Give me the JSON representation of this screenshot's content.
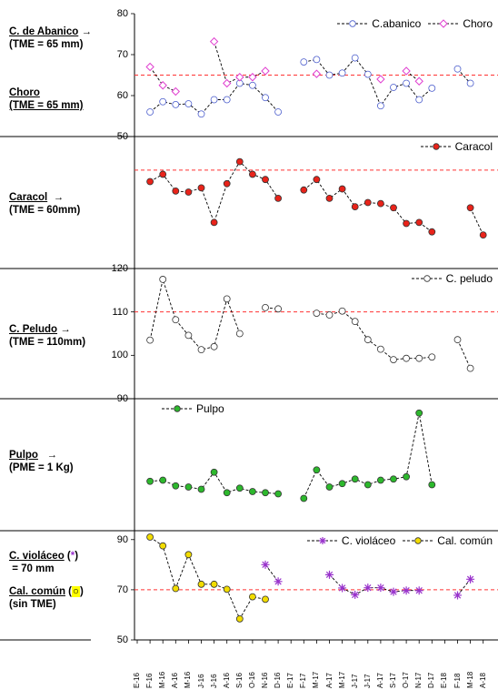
{
  "labels": {
    "p1": {
      "name": "C. de Abanico",
      "arrow": "→",
      "tme": "(TME = 65 mm)",
      "name2": "Choro",
      "tme2": "(TME = 65 mm)"
    },
    "p2": {
      "name": "Caracol",
      "arrow": "→",
      "tme": "(TME = 60mm)"
    },
    "p3": {
      "name": "C. Peludo",
      "arrow": "→",
      "tme": "(TME = 110mm)"
    },
    "p4": {
      "name": "Pulpo",
      "arrow": "→",
      "tme": "(PME = 1 Kg)"
    },
    "p5": {
      "name": "C. violáceo",
      "star": "*",
      "val": "= 70 mm",
      "name2": "Cal. común",
      "circle": "○",
      "note": "(sin TME)"
    }
  },
  "colors": {
    "abanico": "#4a5ccc",
    "choro": "#e040d0",
    "caracol": "#e8231a",
    "peludo": "#000000",
    "pulpo": "#2db82d",
    "violaceo": "#9933cc",
    "calcomun": "#f2dc00",
    "ref": "#ff3333"
  },
  "chart_data": {
    "type": "line",
    "x": [
      "E-16",
      "F-16",
      "M-16",
      "A-16",
      "M-16",
      "J-16",
      "J-16",
      "A-16",
      "S-16",
      "O-16",
      "N-16",
      "D-16",
      "E-17",
      "F-17",
      "M-17",
      "A-17",
      "M-17",
      "J-17",
      "J-17",
      "A-17",
      "S-17",
      "O-17",
      "N-17",
      "D-17",
      "E-18",
      "F-18",
      "M-18",
      "A-18"
    ],
    "x_tick_labels": [
      "E-16",
      "F-16",
      "M-16",
      "A-16",
      "M-16",
      "J-16",
      "J-16",
      "A-16",
      "S-16",
      "O-16",
      "N-16",
      "D-16",
      "E-17",
      "F-17",
      "M-17",
      "A-17",
      "M-17",
      "J-17",
      "J-17",
      "A-17",
      "S-17",
      "O-17",
      "N-17",
      "D-17",
      "E-18",
      "F-18",
      "M-18",
      "A-18"
    ],
    "panels": [
      {
        "id": "abanico-choro",
        "ylim": [
          50,
          80
        ],
        "yticks": [
          50,
          60,
          70,
          80
        ],
        "ref_line": 65,
        "legend_position": "top-right",
        "series": [
          {
            "name": "C.abanico",
            "marker": "circle",
            "color_key": "abanico",
            "values": [
              null,
              56,
              58.5,
              57.8,
              58,
              55.5,
              59,
              59,
              63,
              62.5,
              59.5,
              56,
              null,
              68.2,
              68.8,
              65,
              65.5,
              69.2,
              65.2,
              57.5,
              62,
              63,
              59,
              61.8,
              null,
              66.5,
              63,
              null
            ]
          },
          {
            "name": "Choro",
            "marker": "diamond",
            "color_key": "choro",
            "values": [
              null,
              67,
              62.5,
              61,
              null,
              null,
              73.2,
              63,
              64.5,
              64.5,
              66,
              null,
              null,
              null,
              65.3,
              null,
              null,
              null,
              null,
              64,
              null,
              66,
              63.5,
              null,
              null,
              null,
              null,
              null
            ]
          }
        ]
      },
      {
        "id": "caracol",
        "ylim": [
          0,
          10
        ],
        "yticks": [],
        "ref_line": 8.1,
        "legend_position": "top-right",
        "series": [
          {
            "name": "Caracol",
            "marker": "circle",
            "color_key": "caracol",
            "values": [
              null,
              7.0,
              7.7,
              6.1,
              6.0,
              6.4,
              3.1,
              6.8,
              8.9,
              7.7,
              7.2,
              5.4,
              null,
              6.2,
              7.2,
              5.4,
              6.3,
              4.6,
              5.0,
              4.9,
              4.5,
              3.0,
              3.1,
              2.2,
              null,
              null,
              4.5,
              1.9
            ]
          }
        ]
      },
      {
        "id": "peludo",
        "ylim": [
          90,
          120
        ],
        "yticks": [
          90,
          100,
          110,
          120
        ],
        "ref_line": 110,
        "legend_position": "top-right",
        "series": [
          {
            "name": "C. peludo",
            "marker": "circle",
            "color_key": "peludo",
            "values": [
              null,
              103.5,
              117.5,
              108.2,
              104.6,
              101.3,
              102,
              113,
              105,
              null,
              111,
              110.7,
              null,
              null,
              109.7,
              109.3,
              110.2,
              107.8,
              103.6,
              101.4,
              99,
              99.3,
              99.3,
              99.6,
              null,
              103.6,
              97,
              null
            ]
          }
        ]
      },
      {
        "id": "pulpo",
        "ylim": [
          0,
          10
        ],
        "yticks": [],
        "ref_line": null,
        "legend_position": "top-left",
        "series": [
          {
            "name": "Pulpo",
            "marker": "circle",
            "color_key": "pulpo",
            "values": [
              null,
              3.3,
              3.4,
              2.9,
              2.8,
              2.6,
              4.1,
              2.3,
              2.7,
              2.4,
              2.3,
              2.2,
              null,
              1.8,
              4.3,
              2.8,
              3.1,
              3.5,
              3.0,
              3.4,
              3.5,
              3.7,
              9.3,
              3.0,
              null,
              null,
              null,
              null
            ]
          }
        ]
      },
      {
        "id": "violaceo-calcomun",
        "ylim": [
          50,
          95
        ],
        "yticks": [
          50,
          70,
          90
        ],
        "ref_line": 70,
        "legend_position": "top-right",
        "series": [
          {
            "name": "C. violáceo",
            "marker": "star",
            "color_key": "violaceo",
            "values": [
              null,
              null,
              null,
              null,
              null,
              null,
              null,
              null,
              null,
              null,
              80,
              73.3,
              null,
              null,
              null,
              76,
              70.7,
              68,
              70.8,
              70.8,
              69.2,
              69.7,
              69.7,
              null,
              null,
              67.8,
              74.2,
              null
            ]
          },
          {
            "name": "Cal. común",
            "marker": "circle",
            "color_key": "calcomun",
            "values": [
              null,
              91,
              87.5,
              70.5,
              84,
              72.2,
              72.2,
              70.2,
              58.4,
              67.2,
              66.2,
              null,
              null,
              null,
              null,
              null,
              null,
              null,
              null,
              null,
              null,
              null,
              null,
              null,
              null,
              null,
              null,
              null
            ]
          }
        ]
      }
    ]
  }
}
